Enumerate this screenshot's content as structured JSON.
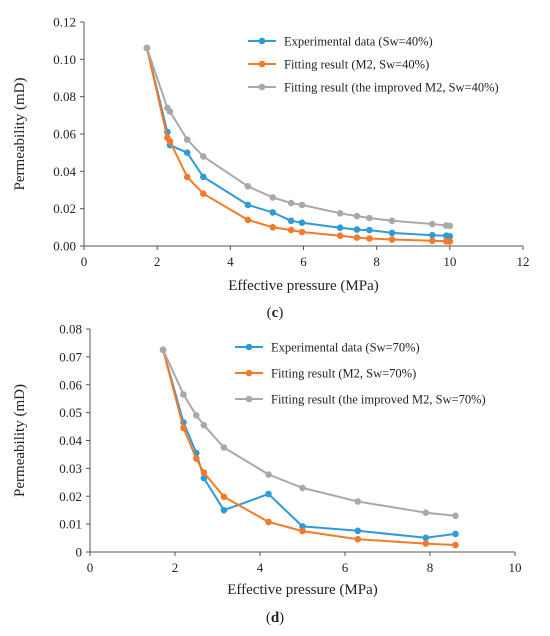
{
  "chart_data": [
    {
      "type": "line",
      "panel": "c",
      "xlabel": "Effective pressure (MPa)",
      "ylabel": "Permeability (mD)",
      "xlim": [
        0,
        12
      ],
      "ylim": [
        0,
        0.12
      ],
      "xticks": [
        0,
        2,
        4,
        6,
        8,
        10,
        12
      ],
      "yticks": [
        0.0,
        0.02,
        0.04,
        0.06,
        0.08,
        0.1,
        0.12
      ],
      "ytick_labels": [
        "0.00",
        "0.02",
        "0.04",
        "0.06",
        "0.08",
        "0.10",
        "0.12"
      ],
      "grid": false,
      "legend_position": "top-right",
      "series": [
        {
          "name": "Experimental data (Sw=40%)",
          "color": "#2e9bd6",
          "x": [
            1.72,
            2.28,
            2.35,
            2.82,
            3.26,
            4.48,
            5.16,
            5.66,
            5.96,
            7.0,
            7.46,
            7.8,
            8.42,
            9.52,
            9.9,
            10.0
          ],
          "y": [
            0.106,
            0.061,
            0.054,
            0.05,
            0.037,
            0.022,
            0.018,
            0.0135,
            0.0125,
            0.0098,
            0.0088,
            0.0085,
            0.007,
            0.0058,
            0.0055,
            0.0052
          ]
        },
        {
          "name": "Fitting result (M2, Sw=40%)",
          "color": "#f47a2a",
          "x": [
            1.72,
            2.28,
            2.35,
            2.82,
            3.26,
            4.48,
            5.16,
            5.66,
            5.96,
            7.0,
            7.46,
            7.8,
            8.42,
            9.52,
            9.9,
            10.0
          ],
          "y": [
            0.106,
            0.058,
            0.056,
            0.037,
            0.028,
            0.014,
            0.01,
            0.0085,
            0.0075,
            0.0055,
            0.0045,
            0.004,
            0.0035,
            0.0028,
            0.0025,
            0.0024
          ]
        },
        {
          "name": "Fitting result (the improved M2, Sw=40%)",
          "color": "#a9a9a9",
          "x": [
            1.72,
            2.28,
            2.35,
            2.82,
            3.26,
            4.48,
            5.16,
            5.66,
            5.96,
            7.0,
            7.46,
            7.8,
            8.42,
            9.52,
            9.9,
            10.0
          ],
          "y": [
            0.106,
            0.074,
            0.072,
            0.057,
            0.048,
            0.032,
            0.026,
            0.023,
            0.022,
            0.0175,
            0.016,
            0.015,
            0.0135,
            0.0118,
            0.011,
            0.0108
          ]
        }
      ]
    },
    {
      "type": "line",
      "panel": "d",
      "xlabel": "Effective pressure (MPa)",
      "ylabel": "Permeability (mD)",
      "xlim": [
        0,
        10
      ],
      "ylim": [
        0,
        0.08
      ],
      "xticks": [
        0,
        2,
        4,
        6,
        8,
        10
      ],
      "yticks": [
        0,
        0.01,
        0.02,
        0.03,
        0.04,
        0.05,
        0.06,
        0.07,
        0.08
      ],
      "ytick_labels": [
        "0",
        "0.01",
        "0.02",
        "0.03",
        "0.04",
        "0.05",
        "0.06",
        "0.07",
        "0.08"
      ],
      "grid": false,
      "legend_position": "top-right",
      "series": [
        {
          "name": "Experimental data (Sw=70%)",
          "color": "#2e9bd6",
          "x": [
            1.72,
            2.2,
            2.5,
            2.68,
            3.15,
            4.2,
            5.0,
            6.3,
            7.9,
            8.6
          ],
          "y": [
            0.0725,
            0.0465,
            0.0355,
            0.0265,
            0.015,
            0.0208,
            0.0092,
            0.0076,
            0.0051,
            0.0065
          ]
        },
        {
          "name": "Fitting result (M2, Sw=70%)",
          "color": "#f47a2a",
          "x": [
            1.72,
            2.2,
            2.5,
            2.68,
            3.15,
            4.2,
            5.0,
            6.3,
            7.9,
            8.6
          ],
          "y": [
            0.0725,
            0.0445,
            0.0335,
            0.0285,
            0.0198,
            0.0108,
            0.0075,
            0.0046,
            0.003,
            0.0025
          ]
        },
        {
          "name": "Fitting result (the improved M2, Sw=70%)",
          "color": "#a9a9a9",
          "x": [
            1.72,
            2.2,
            2.5,
            2.68,
            3.15,
            4.2,
            5.0,
            6.3,
            7.9,
            8.6
          ],
          "y": [
            0.0725,
            0.0565,
            0.049,
            0.0455,
            0.0375,
            0.0278,
            0.023,
            0.0181,
            0.0141,
            0.013
          ]
        }
      ]
    }
  ],
  "captions": [
    "c",
    "d"
  ]
}
